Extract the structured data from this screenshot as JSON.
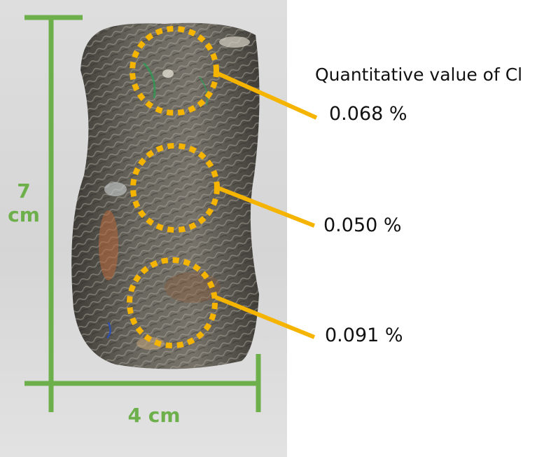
{
  "dimensions": {
    "height_value": "7",
    "height_unit": "cm",
    "width_label": "4 cm"
  },
  "caption": "Quantitative value of Cl",
  "measurements": [
    {
      "value": "0.068 %"
    },
    {
      "value": "0.050 %"
    },
    {
      "value": "0.091 %"
    }
  ],
  "colors": {
    "dimension_lines": "#6db04b",
    "callouts": "#f5b400",
    "sample_base": "#5f5c55"
  }
}
